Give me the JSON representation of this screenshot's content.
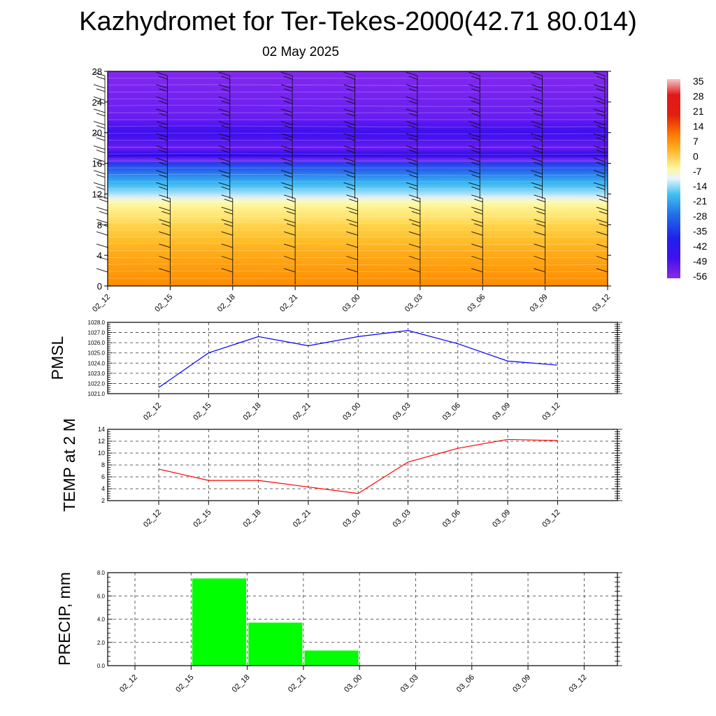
{
  "title": "Kazhydromet for Ter-Tekes-2000(42.71 80.014)",
  "subtitle": "02 May 2025",
  "chart_data": [
    {
      "type": "heatmap",
      "title": "",
      "xlabel": "",
      "ylabel": "",
      "x_tick_labels": [
        "02_12",
        "02_15",
        "02_18",
        "02_21",
        "03_00",
        "03_03",
        "03_06",
        "03_09",
        "03_12"
      ],
      "y_ticks": [
        0,
        4,
        8,
        12,
        16,
        20,
        24,
        28
      ],
      "ylim": [
        0,
        28
      ],
      "level_temperature_approx": [
        {
          "level": 0,
          "value": 12
        },
        {
          "level": 4,
          "value": 8
        },
        {
          "level": 8,
          "value": 2
        },
        {
          "level": 10,
          "value": -4
        },
        {
          "level": 11,
          "value": -9
        },
        {
          "level": 12,
          "value": -18
        },
        {
          "level": 14,
          "value": -30
        },
        {
          "level": 16,
          "value": -45
        },
        {
          "level": 17,
          "value": -60
        },
        {
          "level": 18,
          "value": -54
        },
        {
          "level": 20,
          "value": -58
        },
        {
          "level": 22,
          "value": -54
        },
        {
          "level": 28,
          "value": -52
        }
      ],
      "colorbar": {
        "labels": [
          "35",
          "28",
          "21",
          "14",
          "7",
          "0",
          "-7",
          "-14",
          "-21",
          "-28",
          "-35",
          "-42",
          "-49",
          "-56"
        ]
      },
      "overlay": "wind-barbs"
    },
    {
      "type": "line",
      "ylabel": "PMSL",
      "categories": [
        "02_12",
        "02_15",
        "02_18",
        "02_21",
        "03_00",
        "03_03",
        "03_06",
        "03_09",
        "03_12"
      ],
      "values": [
        1021.6,
        1025.0,
        1026.6,
        1025.7,
        1026.6,
        1027.2,
        1025.9,
        1024.2,
        1023.8
      ],
      "ylim": [
        1021.0,
        1028.0
      ],
      "y_tick_labels": [
        "1021.0",
        "1022.0",
        "1023.0",
        "1024.0",
        "1025.0",
        "1026.0",
        "1027.0",
        "1028.0"
      ],
      "color": "#0000ff",
      "grid": true
    },
    {
      "type": "line",
      "ylabel": "TEMP at 2 M",
      "categories": [
        "02_12",
        "02_15",
        "02_18",
        "02_21",
        "03_00",
        "03_03",
        "03_06",
        "03_09",
        "03_12"
      ],
      "values": [
        7.3,
        5.4,
        5.4,
        4.3,
        3.2,
        8.5,
        10.8,
        12.3,
        12.1
      ],
      "ylim": [
        2,
        14
      ],
      "y_tick_labels": [
        "2",
        "4",
        "6",
        "8",
        "10",
        "12",
        "14"
      ],
      "color": "#ff0000",
      "grid": true
    },
    {
      "type": "bar",
      "ylabel": "PRECIP, mm",
      "categories": [
        "02_12",
        "02_15",
        "02_18",
        "02_21",
        "03_00",
        "03_03",
        "03_06",
        "03_09",
        "03_12"
      ],
      "values": [
        0,
        7.5,
        3.7,
        1.3,
        0,
        0,
        0,
        0,
        0
      ],
      "ylim": [
        0,
        8.0
      ],
      "y_tick_labels": [
        "0.0",
        "2.0",
        "4.0",
        "6.0",
        "8.0"
      ],
      "color": "#00ff00",
      "grid": true
    }
  ]
}
